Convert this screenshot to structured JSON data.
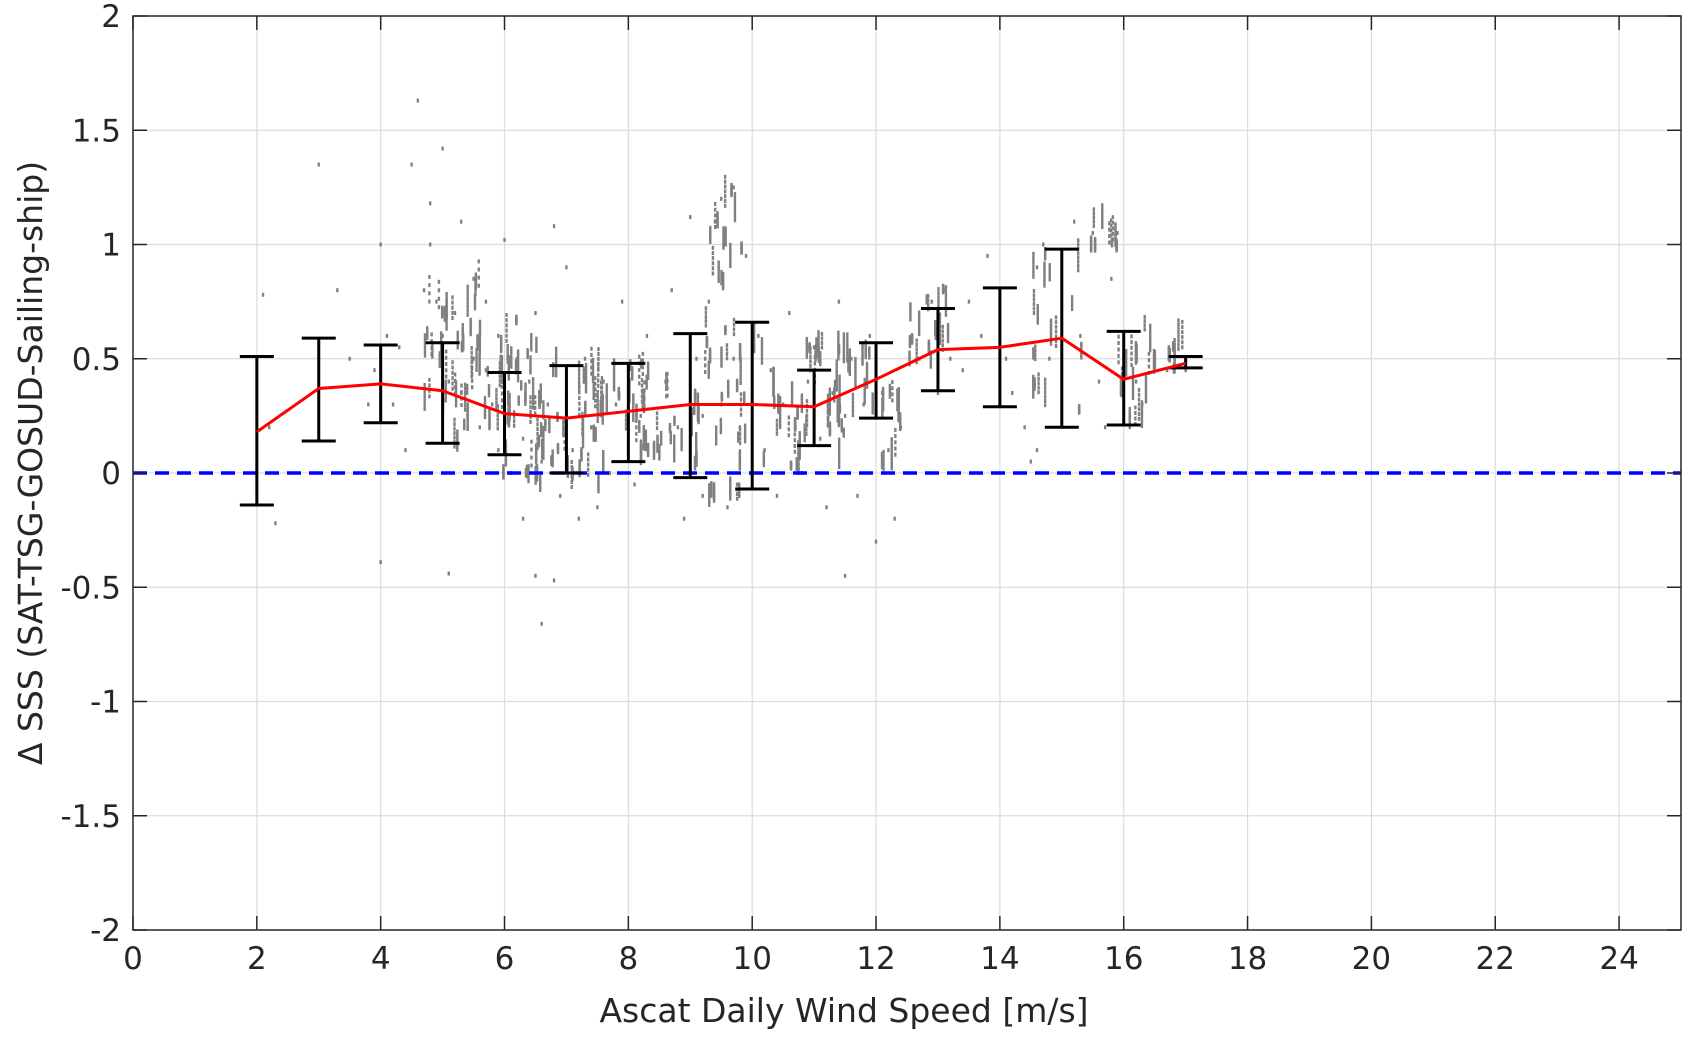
{
  "chart_data": {
    "type": "scatter",
    "xlabel": "Ascat Daily Wind Speed [m/s]",
    "ylabel": "Δ SSS (SAT-TSG-GOSUD-Sailing-ship)",
    "xlim": [
      0,
      25
    ],
    "ylim": [
      -2,
      2
    ],
    "x_ticks": [
      0,
      2,
      4,
      6,
      8,
      10,
      12,
      14,
      16,
      18,
      20,
      22,
      24
    ],
    "y_ticks": [
      2,
      1.5,
      1,
      0.5,
      0,
      -0.5,
      -1,
      -1.5,
      -2
    ],
    "y_tick_labels": [
      "2",
      "1.5",
      "1",
      "0.5",
      "0",
      "-0.5",
      "-1",
      "-1.5",
      "-2"
    ],
    "grid": true,
    "mean_line": {
      "color": "#ff0000",
      "x": [
        2,
        3,
        4,
        5,
        6,
        7,
        8,
        9,
        10,
        11,
        12,
        13,
        14,
        15,
        16,
        17
      ],
      "y": [
        0.18,
        0.37,
        0.39,
        0.36,
        0.26,
        0.24,
        0.27,
        0.3,
        0.3,
        0.29,
        0.41,
        0.54,
        0.55,
        0.59,
        0.41,
        0.48
      ]
    },
    "error_bars": {
      "color": "#000000",
      "x": [
        2,
        3,
        4,
        5,
        6,
        7,
        8,
        9,
        10,
        11,
        12,
        13,
        14,
        15,
        16,
        17
      ],
      "upper": [
        0.51,
        0.59,
        0.56,
        0.57,
        0.44,
        0.47,
        0.48,
        0.61,
        0.66,
        0.45,
        0.57,
        0.72,
        0.81,
        0.98,
        0.62,
        0.51
      ],
      "lower": [
        -0.14,
        0.14,
        0.22,
        0.13,
        0.08,
        0.0,
        0.05,
        -0.02,
        -0.07,
        0.12,
        0.24,
        0.36,
        0.29,
        0.2,
        0.21,
        0.46
      ]
    },
    "zero_line": {
      "y": 0,
      "color": "#0000ff",
      "style": "dashed"
    },
    "scatter_color": "#808080",
    "scatter_points": [
      [
        2.1,
        0.78
      ],
      [
        2.3,
        -0.22
      ],
      [
        2.2,
        0.2
      ],
      [
        3.0,
        1.35
      ],
      [
        3.3,
        0.8
      ],
      [
        3.5,
        0.5
      ],
      [
        3.8,
        0.3
      ],
      [
        3.9,
        0.45
      ],
      [
        4.0,
        1.0
      ],
      [
        4.0,
        -0.39
      ],
      [
        4.1,
        0.6
      ],
      [
        4.2,
        0.3
      ],
      [
        4.3,
        0.55
      ],
      [
        4.4,
        0.1
      ],
      [
        4.5,
        1.35
      ],
      [
        4.6,
        1.63
      ],
      [
        4.7,
        0.8
      ],
      [
        4.8,
        1.0
      ],
      [
        4.8,
        1.18
      ],
      [
        4.9,
        0.75
      ],
      [
        5.0,
        0.6
      ],
      [
        5.0,
        1.42
      ],
      [
        5.1,
        0.4
      ],
      [
        5.1,
        -0.44
      ],
      [
        5.2,
        0.7
      ],
      [
        5.3,
        0.35
      ],
      [
        5.3,
        1.1
      ],
      [
        5.4,
        0.25
      ],
      [
        5.5,
        0.5
      ],
      [
        5.5,
        0.85
      ],
      [
        5.6,
        0.2
      ],
      [
        5.7,
        0.45
      ],
      [
        5.7,
        0.75
      ],
      [
        5.8,
        0.3
      ],
      [
        5.9,
        0.1
      ],
      [
        5.9,
        0.6
      ],
      [
        6.0,
        0.3
      ],
      [
        6.0,
        1.02
      ],
      [
        6.1,
        0.0
      ],
      [
        6.2,
        0.5
      ],
      [
        6.3,
        -0.2
      ],
      [
        6.3,
        0.15
      ],
      [
        6.4,
        0.4
      ],
      [
        6.5,
        -0.45
      ],
      [
        6.5,
        0.7
      ],
      [
        6.6,
        -0.66
      ],
      [
        6.6,
        0.05
      ],
      [
        6.7,
        0.3
      ],
      [
        6.8,
        1.08
      ],
      [
        6.8,
        -0.47
      ],
      [
        6.9,
        -0.1
      ],
      [
        7.0,
        0.35
      ],
      [
        7.0,
        0.9
      ],
      [
        7.1,
        0.1
      ],
      [
        7.2,
        -0.2
      ],
      [
        7.3,
        0.5
      ],
      [
        7.4,
        0.2
      ],
      [
        7.5,
        -0.15
      ],
      [
        7.6,
        0.4
      ],
      [
        7.7,
        0.0
      ],
      [
        7.8,
        0.3
      ],
      [
        7.9,
        0.75
      ],
      [
        8.0,
        0.45
      ],
      [
        8.1,
        -0.05
      ],
      [
        8.2,
        0.25
      ],
      [
        8.3,
        0.6
      ],
      [
        8.5,
        0.1
      ],
      [
        8.6,
        0.4
      ],
      [
        8.7,
        0.8
      ],
      [
        8.8,
        0.2
      ],
      [
        8.9,
        -0.2
      ],
      [
        9.0,
        0.35
      ],
      [
        9.0,
        1.12
      ],
      [
        9.1,
        0.5
      ],
      [
        9.2,
        -0.1
      ],
      [
        9.2,
        0.25
      ],
      [
        9.3,
        0.75
      ],
      [
        9.4,
        1.1
      ],
      [
        9.5,
        0.3
      ],
      [
        9.5,
        1.2
      ],
      [
        9.6,
        -0.15
      ],
      [
        9.7,
        0.5
      ],
      [
        9.7,
        1.25
      ],
      [
        9.8,
        0.2
      ],
      [
        9.9,
        0.95
      ],
      [
        10.0,
        0.35
      ],
      [
        10.0,
        -0.05
      ],
      [
        10.1,
        0.6
      ],
      [
        10.2,
        0.1
      ],
      [
        10.3,
        0.45
      ],
      [
        10.4,
        -0.1
      ],
      [
        10.5,
        0.3
      ],
      [
        10.6,
        0.7
      ],
      [
        10.7,
        0.2
      ],
      [
        10.8,
        0.0
      ],
      [
        10.9,
        0.4
      ],
      [
        11.0,
        0.55
      ],
      [
        11.1,
        0.15
      ],
      [
        11.2,
        -0.15
      ],
      [
        11.3,
        0.35
      ],
      [
        11.4,
        0.75
      ],
      [
        11.5,
        0.25
      ],
      [
        11.5,
        -0.45
      ],
      [
        11.6,
        0.5
      ],
      [
        11.7,
        -0.1
      ],
      [
        11.8,
        0.3
      ],
      [
        11.9,
        0.6
      ],
      [
        12.0,
        -0.3
      ],
      [
        12.1,
        0.35
      ],
      [
        12.2,
        0.1
      ],
      [
        12.3,
        -0.2
      ],
      [
        12.4,
        0.2
      ],
      [
        12.7,
        0.5
      ],
      [
        12.9,
        0.75
      ],
      [
        13.0,
        0.35
      ],
      [
        13.1,
        0.8
      ],
      [
        13.2,
        0.5
      ],
      [
        13.4,
        0.45
      ],
      [
        13.5,
        0.75
      ],
      [
        13.7,
        0.6
      ],
      [
        13.8,
        0.95
      ],
      [
        14.1,
        0.5
      ],
      [
        14.2,
        0.35
      ],
      [
        14.4,
        0.2
      ],
      [
        14.5,
        0.05
      ],
      [
        14.6,
        0.1
      ],
      [
        14.6,
        0.9
      ],
      [
        14.7,
        1.0
      ],
      [
        14.8,
        0.5
      ],
      [
        15.0,
        0.3
      ],
      [
        15.2,
        1.1
      ],
      [
        15.3,
        0.6
      ],
      [
        15.5,
        1.05
      ],
      [
        15.6,
        0.4
      ],
      [
        15.7,
        0.2
      ],
      [
        15.8,
        0.85
      ],
      [
        15.9,
        1.05
      ],
      [
        16.0,
        0.55
      ],
      [
        16.1,
        0.25
      ],
      [
        16.2,
        0.4
      ],
      [
        16.3,
        0.3
      ],
      [
        16.5,
        0.5
      ],
      [
        16.7,
        0.45
      ],
      [
        17.0,
        0.45
      ]
    ],
    "scatter_clusters": [
      [
        4.7,
        5.6,
        0.25,
        0.85,
        28
      ],
      [
        5.0,
        6.2,
        0.1,
        0.7,
        38
      ],
      [
        5.9,
        6.6,
        -0.05,
        0.55,
        26
      ],
      [
        6.5,
        7.6,
        -0.1,
        0.45,
        36
      ],
      [
        7.2,
        8.3,
        0.0,
        0.5,
        32
      ],
      [
        8.0,
        8.9,
        0.05,
        0.45,
        22
      ],
      [
        8.9,
        9.9,
        -0.15,
        0.65,
        36
      ],
      [
        9.3,
        9.9,
        0.8,
        1.28,
        14
      ],
      [
        10.0,
        11.5,
        0.0,
        0.55,
        40
      ],
      [
        11.0,
        12.0,
        0.2,
        0.55,
        24
      ],
      [
        12.0,
        12.4,
        0.0,
        0.35,
        12
      ],
      [
        12.5,
        13.2,
        0.45,
        0.8,
        18
      ],
      [
        14.5,
        15.4,
        0.25,
        0.95,
        18
      ],
      [
        15.4,
        15.9,
        0.95,
        1.12,
        10
      ],
      [
        15.9,
        16.4,
        0.2,
        0.65,
        14
      ],
      [
        16.4,
        17.2,
        0.42,
        0.55,
        12
      ]
    ]
  }
}
